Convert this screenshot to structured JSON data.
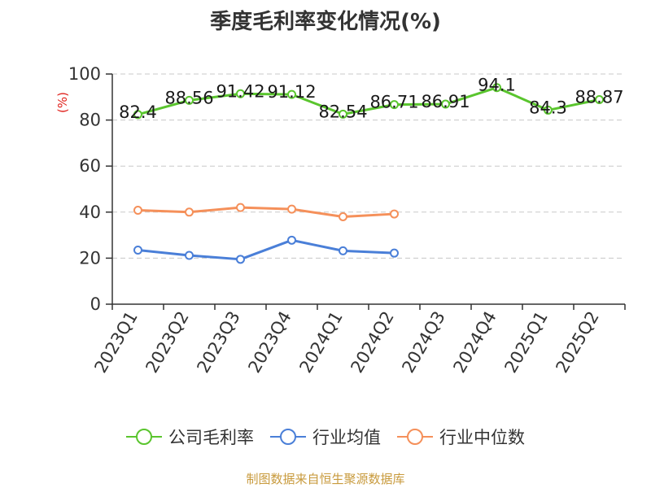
{
  "title": "季度毛利率变化情况(%)",
  "source": "制图数据来自恒生聚源数据库",
  "chart_data": {
    "type": "line",
    "title": "季度毛利率变化情况(%)",
    "ylabel": "(%)",
    "xlabel": "",
    "ylim": [
      0,
      100
    ],
    "yticks": [
      0,
      20,
      40,
      60,
      80,
      100
    ],
    "grid": true,
    "legend_position": "bottom",
    "categories": [
      "2023Q1",
      "2023Q2",
      "2023Q3",
      "2023Q4",
      "2024Q1",
      "2024Q2",
      "2024Q3",
      "2024Q4",
      "2025Q1",
      "2025Q2"
    ],
    "series": [
      {
        "name": "公司毛利率",
        "color": "#5ac52e",
        "labels": true,
        "values": [
          82.4,
          88.56,
          91.42,
          91.12,
          82.54,
          86.71,
          86.91,
          94.1,
          84.3,
          88.87
        ]
      },
      {
        "name": "行业均值",
        "color": "#4a7fd8",
        "labels": false,
        "values": [
          23.5,
          21.2,
          19.5,
          27.8,
          23.2,
          22.2,
          null,
          null,
          null,
          null
        ]
      },
      {
        "name": "行业中位数",
        "color": "#f5905a",
        "labels": false,
        "values": [
          40.8,
          40.0,
          42.0,
          41.3,
          38.0,
          39.2,
          null,
          null,
          null,
          null
        ]
      }
    ]
  }
}
